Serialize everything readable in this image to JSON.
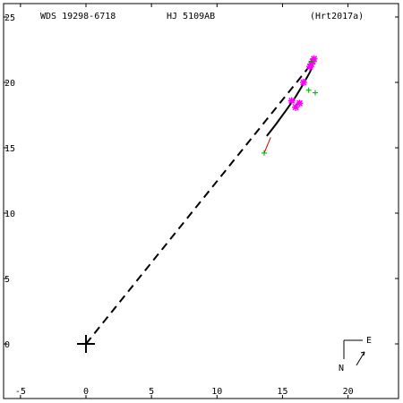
{
  "header": {
    "wds": "WDS 19298-6718",
    "name": "HJ 5109AB",
    "ref": "(Hrt2017a)"
  },
  "compass": {
    "east": "E",
    "north": "N"
  },
  "colors": {
    "axes": "#000000",
    "orbit_fit": "#000000",
    "residual": "#cc0000",
    "speckle": "#ff00ff",
    "micrometer": "#00a000",
    "primary": "#000000"
  },
  "chart_data": {
    "type": "scatter",
    "title": "",
    "xlabel": "",
    "ylabel": "",
    "xlim": [
      -5,
      24
    ],
    "ylim": [
      -4,
      25
    ],
    "x_ticks": [
      -5,
      0,
      5,
      10,
      15,
      20
    ],
    "y_ticks": [
      0,
      5,
      10,
      15,
      20,
      25
    ],
    "primary_star": {
      "x": 0,
      "y": 0
    },
    "line_of_nodes": {
      "x1": 0,
      "y1": 0,
      "x2": 17.2,
      "y2": 21.4
    },
    "orbit_arc": [
      [
        13.8,
        15.9
      ],
      [
        14.5,
        16.8
      ],
      [
        15.3,
        17.9
      ],
      [
        16.0,
        18.9
      ],
      [
        16.6,
        19.9
      ],
      [
        17.1,
        20.8
      ],
      [
        17.3,
        21.3
      ]
    ],
    "series": [
      {
        "marker": "star",
        "points": [
          [
            17.3,
            21.6
          ],
          [
            17.2,
            21.4
          ],
          [
            17.4,
            21.8
          ],
          [
            17.1,
            21.2
          ],
          [
            16.6,
            20.0
          ],
          [
            16.3,
            18.4
          ],
          [
            16.0,
            18.1
          ],
          [
            15.7,
            18.6
          ]
        ]
      },
      {
        "marker": "plus",
        "points": [
          [
            17.2,
            21.6
          ],
          [
            17.0,
            19.4
          ],
          [
            17.5,
            19.2
          ],
          [
            13.6,
            14.6
          ]
        ]
      }
    ],
    "residual_segments": [
      [
        [
          13.6,
          14.6
        ],
        [
          14.1,
          15.8
        ]
      ],
      [
        [
          16.0,
          18.1
        ],
        [
          16.2,
          18.6
        ]
      ]
    ]
  }
}
